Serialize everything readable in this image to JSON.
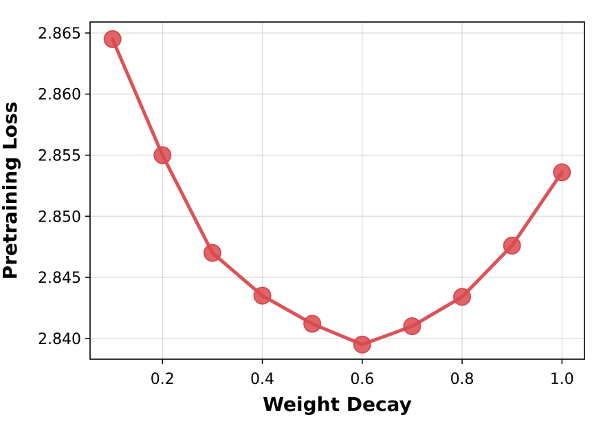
{
  "chart_data": {
    "type": "line",
    "xlabel": "Weight Decay",
    "ylabel": "Pretraining Loss",
    "xlim": [
      0.055,
      1.045
    ],
    "ylim": [
      2.8383,
      2.8659
    ],
    "xticks": [
      0.2,
      0.4,
      0.6,
      0.8,
      1.0
    ],
    "xtick_labels": [
      "0.2",
      "0.4",
      "0.6",
      "0.8",
      "1.0"
    ],
    "yticks": [
      2.84,
      2.845,
      2.85,
      2.855,
      2.86,
      2.865
    ],
    "ytick_labels": [
      "2.840",
      "2.845",
      "2.850",
      "2.855",
      "2.860",
      "2.865"
    ],
    "grid": true,
    "series": [
      {
        "color": "#d94a4f",
        "marker": "circle",
        "x": [
          0.1,
          0.2,
          0.3,
          0.4,
          0.5,
          0.6,
          0.7,
          0.8,
          0.9,
          1.0
        ],
        "y": [
          2.8645,
          2.855,
          2.847,
          2.8435,
          2.8412,
          2.8395,
          2.841,
          2.8434,
          2.8476,
          2.8536
        ]
      }
    ]
  }
}
